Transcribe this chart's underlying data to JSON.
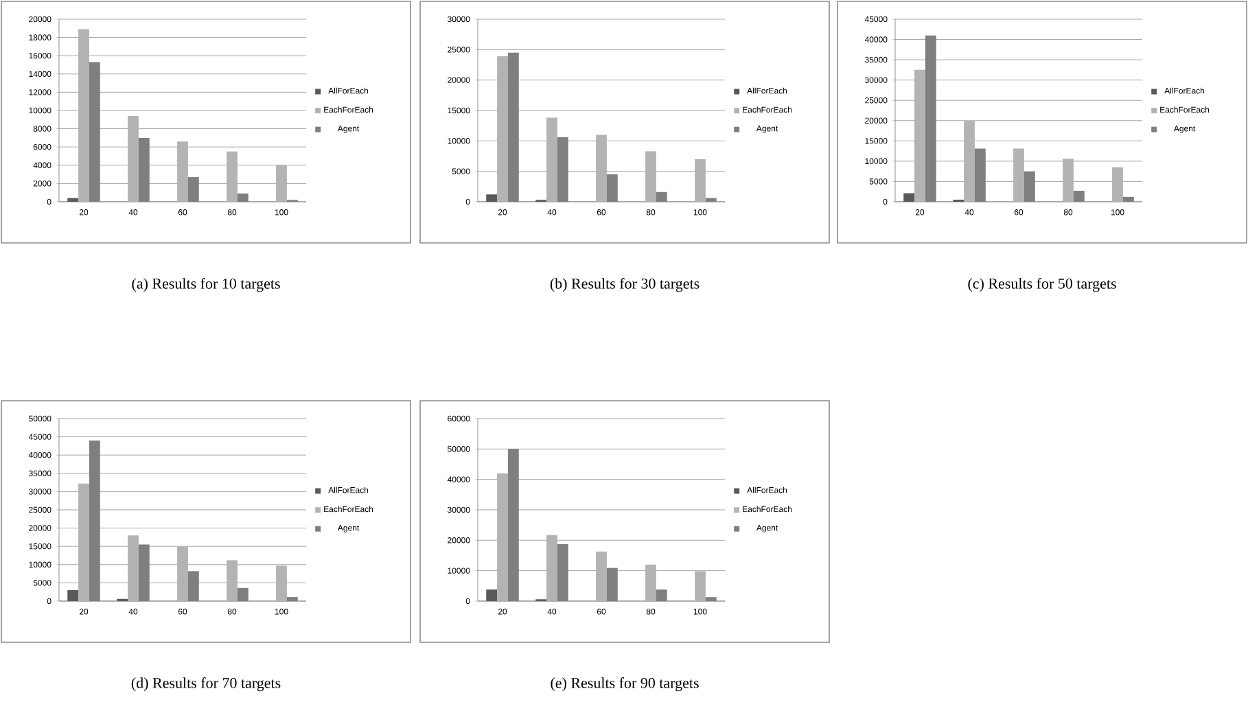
{
  "chart_data": [
    {
      "type": "bar",
      "title": "(a) Results for 10 targets",
      "categories": [
        "20",
        "40",
        "60",
        "80",
        "100"
      ],
      "ylim": [
        0,
        20000
      ],
      "yticks": [
        0,
        2000,
        4000,
        6000,
        8000,
        10000,
        12000,
        14000,
        16000,
        18000,
        20000
      ],
      "grid": "y",
      "legend": "right",
      "series": [
        {
          "name": "AllForEach",
          "color": "#595959",
          "values": [
            400,
            0,
            0,
            0,
            0
          ]
        },
        {
          "name": "EachForEach",
          "color": "#b3b3b3",
          "values": [
            18900,
            9400,
            6600,
            5500,
            4000
          ]
        },
        {
          "name": "Agent",
          "color": "#7f7f7f",
          "values": [
            15300,
            7000,
            2700,
            900,
            200
          ]
        }
      ]
    },
    {
      "type": "bar",
      "title": "(b) Results for 30 targets",
      "categories": [
        "20",
        "40",
        "60",
        "80",
        "100"
      ],
      "ylim": [
        0,
        30000
      ],
      "yticks": [
        0,
        5000,
        10000,
        15000,
        20000,
        25000,
        30000
      ],
      "grid": "y",
      "legend": "right",
      "series": [
        {
          "name": "AllForEach",
          "color": "#595959",
          "values": [
            1200,
            300,
            0,
            0,
            0
          ]
        },
        {
          "name": "EachForEach",
          "color": "#b3b3b3",
          "values": [
            23900,
            13800,
            11000,
            8300,
            7000
          ]
        },
        {
          "name": "Agent",
          "color": "#7f7f7f",
          "values": [
            24500,
            10600,
            4500,
            1600,
            600
          ]
        }
      ]
    },
    {
      "type": "bar",
      "title": "(c) Results for 50 targets",
      "categories": [
        "20",
        "40",
        "60",
        "80",
        "100"
      ],
      "ylim": [
        0,
        45000
      ],
      "yticks": [
        0,
        5000,
        10000,
        15000,
        20000,
        25000,
        30000,
        35000,
        40000,
        45000
      ],
      "grid": "y",
      "legend": "right",
      "series": [
        {
          "name": "AllForEach",
          "color": "#595959",
          "values": [
            2100,
            500,
            0,
            0,
            0
          ]
        },
        {
          "name": "EachForEach",
          "color": "#b3b3b3",
          "values": [
            32500,
            19900,
            13100,
            10600,
            8500
          ]
        },
        {
          "name": "Agent",
          "color": "#7f7f7f",
          "values": [
            41000,
            13100,
            7500,
            2700,
            1200
          ]
        }
      ]
    },
    {
      "type": "bar",
      "title": "(d) Results for 70 targets",
      "categories": [
        "20",
        "40",
        "60",
        "80",
        "100"
      ],
      "ylim": [
        0,
        50000
      ],
      "yticks": [
        0,
        5000,
        10000,
        15000,
        20000,
        25000,
        30000,
        35000,
        40000,
        45000,
        50000
      ],
      "grid": "y",
      "legend": "right",
      "series": [
        {
          "name": "AllForEach",
          "color": "#595959",
          "values": [
            3000,
            600,
            0,
            0,
            0
          ]
        },
        {
          "name": "EachForEach",
          "color": "#b3b3b3",
          "values": [
            32200,
            18000,
            15000,
            11200,
            9700
          ]
        },
        {
          "name": "Agent",
          "color": "#7f7f7f",
          "values": [
            44000,
            15500,
            8200,
            3600,
            1100
          ]
        }
      ]
    },
    {
      "type": "bar",
      "title": "(e) Results for 90 targets",
      "categories": [
        "20",
        "40",
        "60",
        "80",
        "100"
      ],
      "ylim": [
        0,
        60000
      ],
      "yticks": [
        0,
        10000,
        20000,
        30000,
        40000,
        50000,
        60000
      ],
      "grid": "y",
      "legend": "right",
      "series": [
        {
          "name": "AllForEach",
          "color": "#595959",
          "values": [
            3800,
            600,
            0,
            0,
            0
          ]
        },
        {
          "name": "EachForEach",
          "color": "#b3b3b3",
          "values": [
            42000,
            21700,
            16300,
            12000,
            9800
          ]
        },
        {
          "name": "Agent",
          "color": "#7f7f7f",
          "values": [
            50000,
            18700,
            10900,
            3800,
            1300
          ]
        }
      ]
    }
  ]
}
